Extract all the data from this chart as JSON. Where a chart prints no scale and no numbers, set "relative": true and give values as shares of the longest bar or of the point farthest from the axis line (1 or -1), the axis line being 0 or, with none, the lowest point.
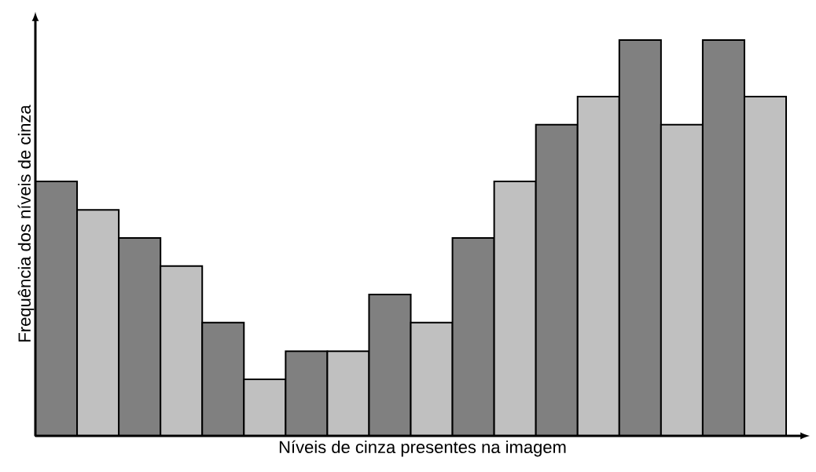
{
  "chart_data": {
    "type": "bar",
    "relative": true,
    "xlabel": "Níveis de cinza presentes na imagem",
    "ylabel": "Frequência dos níveis de cinza",
    "categories": [
      null,
      null,
      null,
      null,
      null,
      null,
      null,
      null,
      null,
      null,
      null,
      null,
      null,
      null,
      null,
      null,
      null,
      null
    ],
    "values": [
      0.643,
      0.571,
      0.5,
      0.429,
      0.286,
      0.143,
      0.214,
      0.214,
      0.357,
      0.286,
      0.5,
      0.643,
      0.786,
      0.857,
      1,
      0.786,
      1,
      0.857
    ],
    "colors": [
      "#808080",
      "#c0c0c0",
      "#808080",
      "#c0c0c0",
      "#808080",
      "#c0c0c0",
      "#808080",
      "#c0c0c0",
      "#808080",
      "#c0c0c0",
      "#808080",
      "#c0c0c0",
      "#808080",
      "#c0c0c0",
      "#808080",
      "#c0c0c0",
      "#808080",
      "#c0c0c0"
    ]
  }
}
